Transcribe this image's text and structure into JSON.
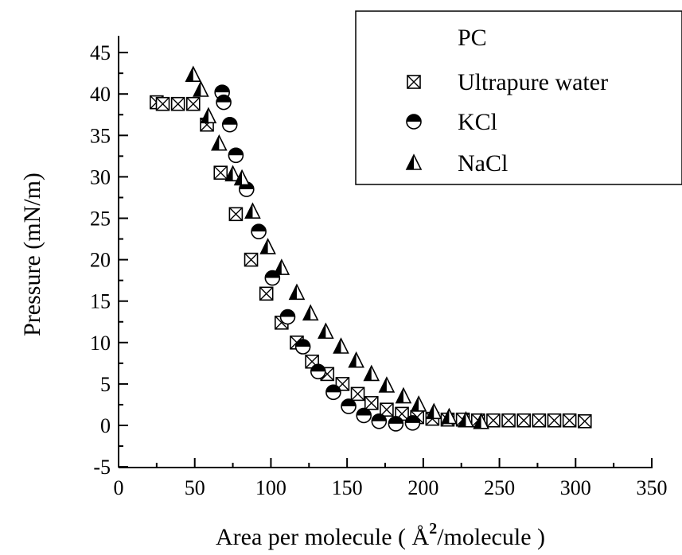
{
  "chart_data": {
    "type": "scatter",
    "title": "",
    "xlabel_pre": "Area per molecule ( ",
    "xlabel_unit": "Å",
    "xlabel_sup": "2",
    "xlabel_post": "/molecule )",
    "ylabel": "Pressure (mN/m)",
    "xlim": [
      0,
      350
    ],
    "ylim": [
      -5,
      47
    ],
    "xticks": [
      "0",
      "50",
      "100",
      "150",
      "200",
      "250",
      "300",
      "350"
    ],
    "yticks": [
      "-5",
      "0",
      "5",
      "10",
      "15",
      "20",
      "25",
      "30",
      "35",
      "40",
      "45"
    ],
    "grid": false,
    "legend": {
      "position": "top-right",
      "title": "PC"
    },
    "series": [
      {
        "name": "Ultrapure water",
        "marker": "boxed-x",
        "x": [
          25,
          29,
          39,
          49,
          58,
          67,
          77,
          87,
          97,
          107,
          117,
          127,
          137,
          147,
          157,
          166,
          176,
          186,
          196,
          206,
          216,
          226,
          236,
          246,
          256,
          266,
          276,
          286,
          296,
          306
        ],
        "y": [
          39.0,
          38.8,
          38.8,
          38.8,
          36.3,
          30.5,
          25.5,
          20.0,
          15.9,
          12.4,
          10.0,
          7.7,
          6.2,
          5.0,
          3.8,
          2.7,
          1.9,
          1.4,
          1.0,
          0.8,
          0.7,
          0.7,
          0.6,
          0.6,
          0.6,
          0.6,
          0.6,
          0.6,
          0.6,
          0.5
        ]
      },
      {
        "name": "KCl",
        "marker": "half-filled-circle",
        "x": [
          68,
          69,
          73,
          77,
          84,
          92,
          101,
          111,
          121,
          131,
          141,
          151,
          161,
          171,
          182,
          193
        ],
        "y": [
          40.2,
          39.0,
          36.3,
          32.6,
          28.5,
          23.4,
          17.8,
          13.1,
          9.5,
          6.5,
          4.0,
          2.3,
          1.2,
          0.5,
          0.2,
          0.3
        ]
      },
      {
        "name": "NaCl",
        "marker": "half-filled-triangle",
        "x": [
          49,
          54,
          59,
          66,
          75,
          81,
          88,
          98,
          107,
          117,
          126,
          136,
          146,
          156,
          166,
          176,
          187,
          197,
          207,
          217,
          228,
          238
        ],
        "y": [
          42.3,
          40.5,
          37.3,
          34.0,
          30.3,
          29.8,
          25.8,
          21.5,
          19.0,
          16.0,
          13.5,
          11.3,
          9.5,
          7.8,
          6.2,
          4.8,
          3.5,
          2.5,
          1.6,
          1.0,
          0.6,
          0.4
        ]
      }
    ]
  }
}
